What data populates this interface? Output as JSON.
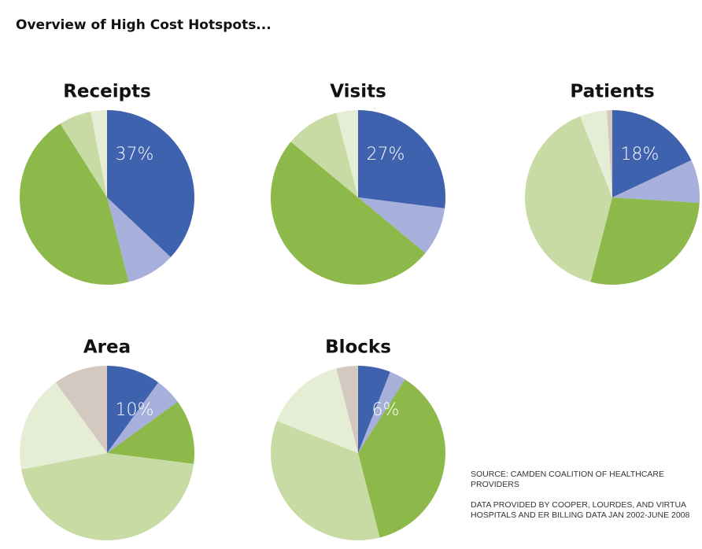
{
  "title": "Overview of High Cost Hotspots...",
  "source": [
    "SOURCE: CAMDEN COALITION OF HEALTHCARE PROVIDERS",
    "DATA PROVIDED BY COOPER, LOURDES, AND VIRTUA HOSPITALS AND ER BILLING DATA JAN 2002-JUNE 2008"
  ],
  "chart_data": [
    {
      "type": "pie",
      "title": "Receipts",
      "values": [
        37,
        9,
        45,
        6,
        3
      ],
      "value_labels": [
        "37%",
        null,
        null,
        null,
        null
      ],
      "colors": [
        "#3e62ad",
        "#a7b0db",
        "#8db84a",
        "#c9dba4",
        "#e6edd5"
      ]
    },
    {
      "type": "pie",
      "title": "Visits",
      "values": [
        27,
        9,
        50,
        10,
        4
      ],
      "value_labels": [
        "27%",
        null,
        null,
        null,
        null
      ],
      "colors": [
        "#3e62ad",
        "#a7b0db",
        "#8db84a",
        "#c9dba4",
        "#e6edd5"
      ]
    },
    {
      "type": "pie",
      "title": "Patients",
      "values": [
        18,
        8,
        28,
        40,
        5,
        1
      ],
      "value_labels": [
        "18%",
        null,
        null,
        null,
        null,
        null
      ],
      "colors": [
        "#3e62ad",
        "#a7b0db",
        "#8db84a",
        "#c9dba4",
        "#e6edd5",
        "#d4c9c0"
      ]
    },
    {
      "type": "pie",
      "title": "Area",
      "values": [
        10,
        5,
        12,
        45,
        18,
        10
      ],
      "value_labels": [
        "10%",
        null,
        null,
        null,
        null,
        null
      ],
      "colors": [
        "#3e62ad",
        "#a7b0db",
        "#8db84a",
        "#c9dba4",
        "#e6edd5",
        "#d4c9c0"
      ]
    },
    {
      "type": "pie",
      "title": "Blocks",
      "values": [
        6,
        3,
        37,
        35,
        15,
        4
      ],
      "value_labels": [
        "6%",
        null,
        null,
        null,
        null,
        null
      ],
      "colors": [
        "#3e62ad",
        "#a7b0db",
        "#8db84a",
        "#c9dba4",
        "#e6edd5",
        "#d4c9c0"
      ]
    }
  ]
}
